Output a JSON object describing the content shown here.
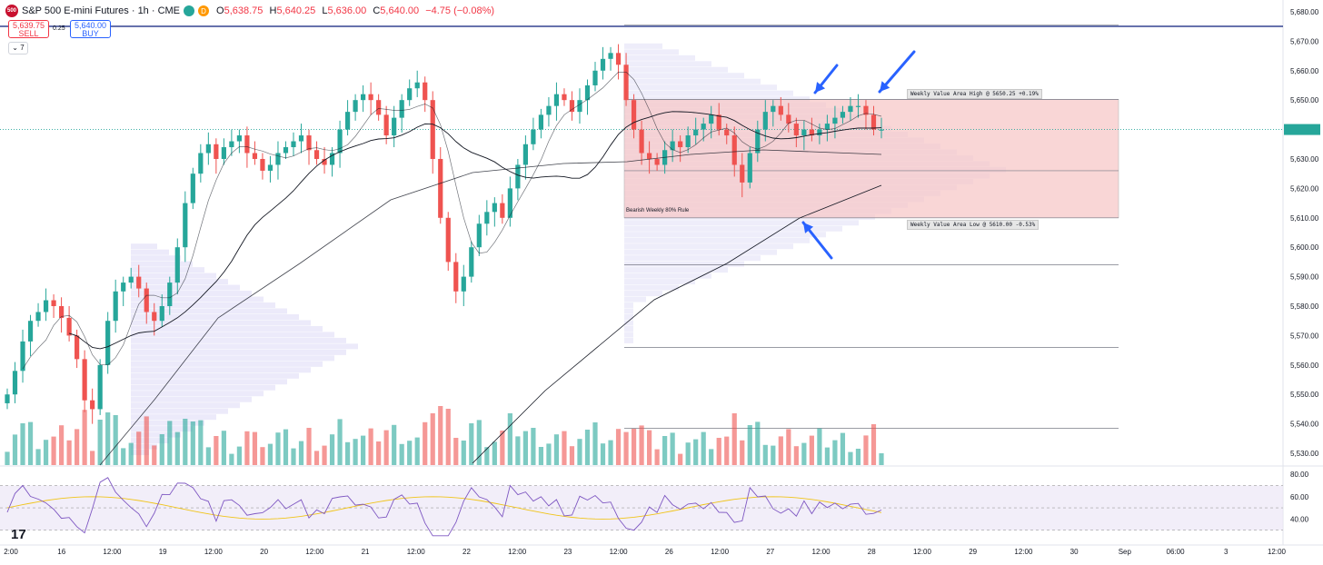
{
  "header": {
    "symbol_badge": "500",
    "title": "S&P 500 E-mini Futures · 1h · CME",
    "open": "5,638.75",
    "high": "5,640.25",
    "low": "5,636.00",
    "close": "5,640.00",
    "change": "−4.75 (−0.08%)",
    "status_dot_color": "#26a69a",
    "delay_badge": "D"
  },
  "trade": {
    "sell_price": "5,639.75",
    "sell_label": "SELL",
    "spread": "0.25",
    "buy_price": "5,640.00",
    "buy_label": "BUY",
    "indicators_count": "7"
  },
  "annotations": {
    "value_area_high": "Weekly Value Area High @ 5650.25  +0.19%",
    "value_area_low": "Weekly Value Area Low @ 5610.00  -0.53%",
    "rule_label": "Bearish Weekly 80% Rule"
  },
  "chart_data": {
    "type": "line",
    "instrument": "S&P 500 E-mini Futures",
    "timeframe": "1h",
    "price_axis": {
      "ticks": [
        "5,680.00",
        "5,670.00",
        "5,660.00",
        "5,650.00",
        "5,640.00",
        "5,630.00",
        "5,620.00",
        "5,610.00",
        "5,600.00",
        "5,590.00",
        "5,580.00",
        "5,570.00",
        "5,560.00",
        "5,550.00",
        "5,540.00",
        "5,530.00"
      ],
      "ylim": [
        5526,
        5684
      ]
    },
    "rsi_axis": {
      "ticks": [
        "80.00",
        "60.00",
        "40.00"
      ],
      "ylim": [
        20,
        85
      ],
      "band": [
        30,
        70
      ]
    },
    "time_axis_labels": [
      "2:00",
      "16",
      "12:00",
      "19",
      "12:00",
      "20",
      "12:00",
      "21",
      "12:00",
      "22",
      "12:00",
      "23",
      "12:00",
      "26",
      "12:00",
      "27",
      "12:00",
      "28",
      "12:00",
      "29",
      "12:00",
      "30",
      "Sep",
      "06:00",
      "3",
      "12:00"
    ],
    "close_series": [
      5550,
      5558,
      5568,
      5575,
      5578,
      5582,
      5580,
      5576,
      5570,
      5562,
      5548,
      5545,
      5560,
      5575,
      5585,
      5588,
      5590,
      5586,
      5578,
      5575,
      5580,
      5588,
      5600,
      5615,
      5625,
      5632,
      5635,
      5630,
      5634,
      5636,
      5638,
      5632,
      5630,
      5626,
      5628,
      5632,
      5634,
      5636,
      5638,
      5633,
      5630,
      5628,
      5632,
      5640,
      5646,
      5650,
      5652,
      5650,
      5645,
      5638,
      5644,
      5650,
      5654,
      5656,
      5650,
      5630,
      5610,
      5595,
      5585,
      5590,
      5600,
      5608,
      5612,
      5615,
      5610,
      5620,
      5628,
      5635,
      5640,
      5645,
      5648,
      5652,
      5650,
      5646,
      5650,
      5655,
      5660,
      5664,
      5666,
      5662,
      5650,
      5640,
      5632,
      5630,
      5628,
      5633,
      5636,
      5634,
      5638,
      5640,
      5642,
      5645,
      5640,
      5638,
      5628,
      5622,
      5632,
      5640,
      5646,
      5648,
      5645,
      5642,
      5638,
      5640,
      5638,
      5640,
      5642,
      5644,
      5646,
      5648,
      5648,
      5645,
      5640,
      5640
    ],
    "current_price": 5640.0,
    "horizontal_levels": [
      5675.5,
      5650.25,
      5626,
      5610,
      5594,
      5566,
      5538.5
    ],
    "value_area": {
      "high": 5650.25,
      "low": 5610.0
    },
    "arrows": [
      "down",
      "down",
      "up-left"
    ],
    "volume_colors": {
      "up": "#26a69a",
      "down": "#ef5350"
    }
  },
  "colors": {
    "accent_blue": "#2962ff",
    "up": "#26a69a",
    "down": "#ef5350",
    "value_area_fill": "#f7c6c6",
    "profile_fill": "#d9d6f5",
    "rsi_line": "#7e57c2",
    "rsi_ma": "#f0c419"
  },
  "footer": {
    "logo_text": "17"
  }
}
